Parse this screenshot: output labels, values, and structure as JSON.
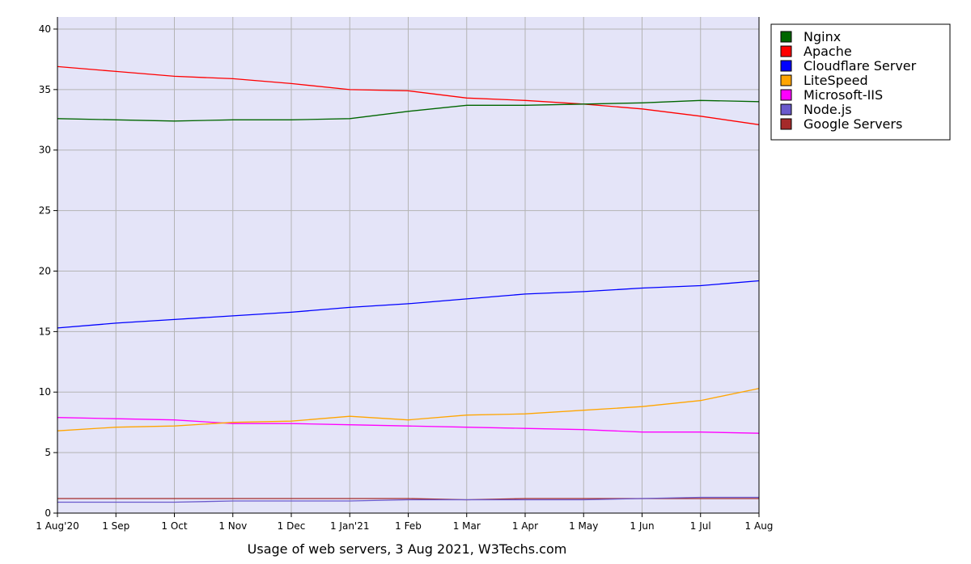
{
  "chart_data": {
    "type": "line",
    "title": "Usage of web servers, 3 Aug 2021, W3Techs.com",
    "xlabel": "",
    "ylabel": "",
    "categories": [
      "1 Aug'20",
      "1 Sep",
      "1 Oct",
      "1 Nov",
      "1 Dec",
      "1 Jan'21",
      "1 Feb",
      "1 Mar",
      "1 Apr",
      "1 May",
      "1 Jun",
      "1 Jul",
      "1 Aug"
    ],
    "ylim": [
      0,
      41
    ],
    "yticks": [
      0,
      5,
      10,
      15,
      20,
      25,
      30,
      35,
      40
    ],
    "grid": true,
    "legend_position": "right",
    "background": "#e4e4f8",
    "series": [
      {
        "name": "Nginx",
        "color": "#006600",
        "values": [
          32.6,
          32.5,
          32.4,
          32.5,
          32.5,
          32.6,
          33.2,
          33.7,
          33.7,
          33.8,
          33.9,
          34.1,
          34.0
        ]
      },
      {
        "name": "Apache",
        "color": "#ff0000",
        "values": [
          36.9,
          36.5,
          36.1,
          35.9,
          35.5,
          35.0,
          34.9,
          34.3,
          34.1,
          33.8,
          33.4,
          32.8,
          32.1
        ]
      },
      {
        "name": "Cloudflare Server",
        "color": "#0000ff",
        "values": [
          15.3,
          15.7,
          16.0,
          16.3,
          16.6,
          17.0,
          17.3,
          17.7,
          18.1,
          18.3,
          18.6,
          18.8,
          19.2
        ]
      },
      {
        "name": "LiteSpeed",
        "color": "#ffa500",
        "values": [
          6.8,
          7.1,
          7.2,
          7.5,
          7.6,
          8.0,
          7.7,
          8.1,
          8.2,
          8.5,
          8.8,
          9.3,
          10.3
        ]
      },
      {
        "name": "Microsoft-IIS",
        "color": "#ff00ff",
        "values": [
          7.9,
          7.8,
          7.7,
          7.4,
          7.4,
          7.3,
          7.2,
          7.1,
          7.0,
          6.9,
          6.7,
          6.7,
          6.6
        ]
      },
      {
        "name": "Node.js",
        "color": "#6a5acd",
        "values": [
          0.9,
          0.9,
          0.9,
          1.0,
          1.0,
          1.0,
          1.1,
          1.1,
          1.1,
          1.1,
          1.2,
          1.3,
          1.3
        ]
      },
      {
        "name": "Google Servers",
        "color": "#a52a2a",
        "values": [
          1.2,
          1.2,
          1.2,
          1.2,
          1.2,
          1.2,
          1.2,
          1.1,
          1.2,
          1.2,
          1.2,
          1.2,
          1.2
        ]
      }
    ]
  }
}
